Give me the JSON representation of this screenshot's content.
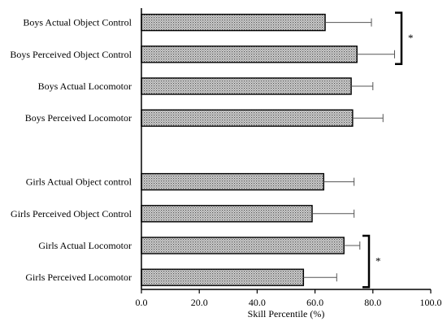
{
  "chart_data": {
    "type": "bar",
    "orientation": "horizontal",
    "title": "",
    "xlabel": "Skill Percentile (%)",
    "ylabel": "",
    "xlim": [
      0,
      100
    ],
    "xticks": [
      0,
      20,
      40,
      60,
      80,
      100
    ],
    "xtick_labels": [
      "0.0",
      "20.0",
      "40.0",
      "60.0",
      "80.0",
      "100.0"
    ],
    "grid": false,
    "legend": "none",
    "bar_fill_pattern": "dotted",
    "bar_fill_color": "#d9d9d9",
    "bar_edge_color": "#000000",
    "categories": [
      "Boys Actual Object Control",
      "Boys Perceived Object Control",
      "Boys Actual Locomotor",
      "Boys Perceived Locomotor",
      "",
      "Girls Actual Object control",
      "Girls Perceived Object Control",
      "Girls Actual Locomotor",
      "Girls Perceived Locomotor"
    ],
    "values": [
      63.5,
      74.5,
      72.5,
      73,
      null,
      63,
      59,
      70,
      56
    ],
    "error": [
      16,
      13,
      7.5,
      10.5,
      null,
      10.5,
      14.5,
      5.5,
      11.5
    ],
    "significance": [
      {
        "between": [
          0,
          1
        ],
        "label": "*"
      },
      {
        "between": [
          7,
          8
        ],
        "label": "*"
      }
    ]
  }
}
